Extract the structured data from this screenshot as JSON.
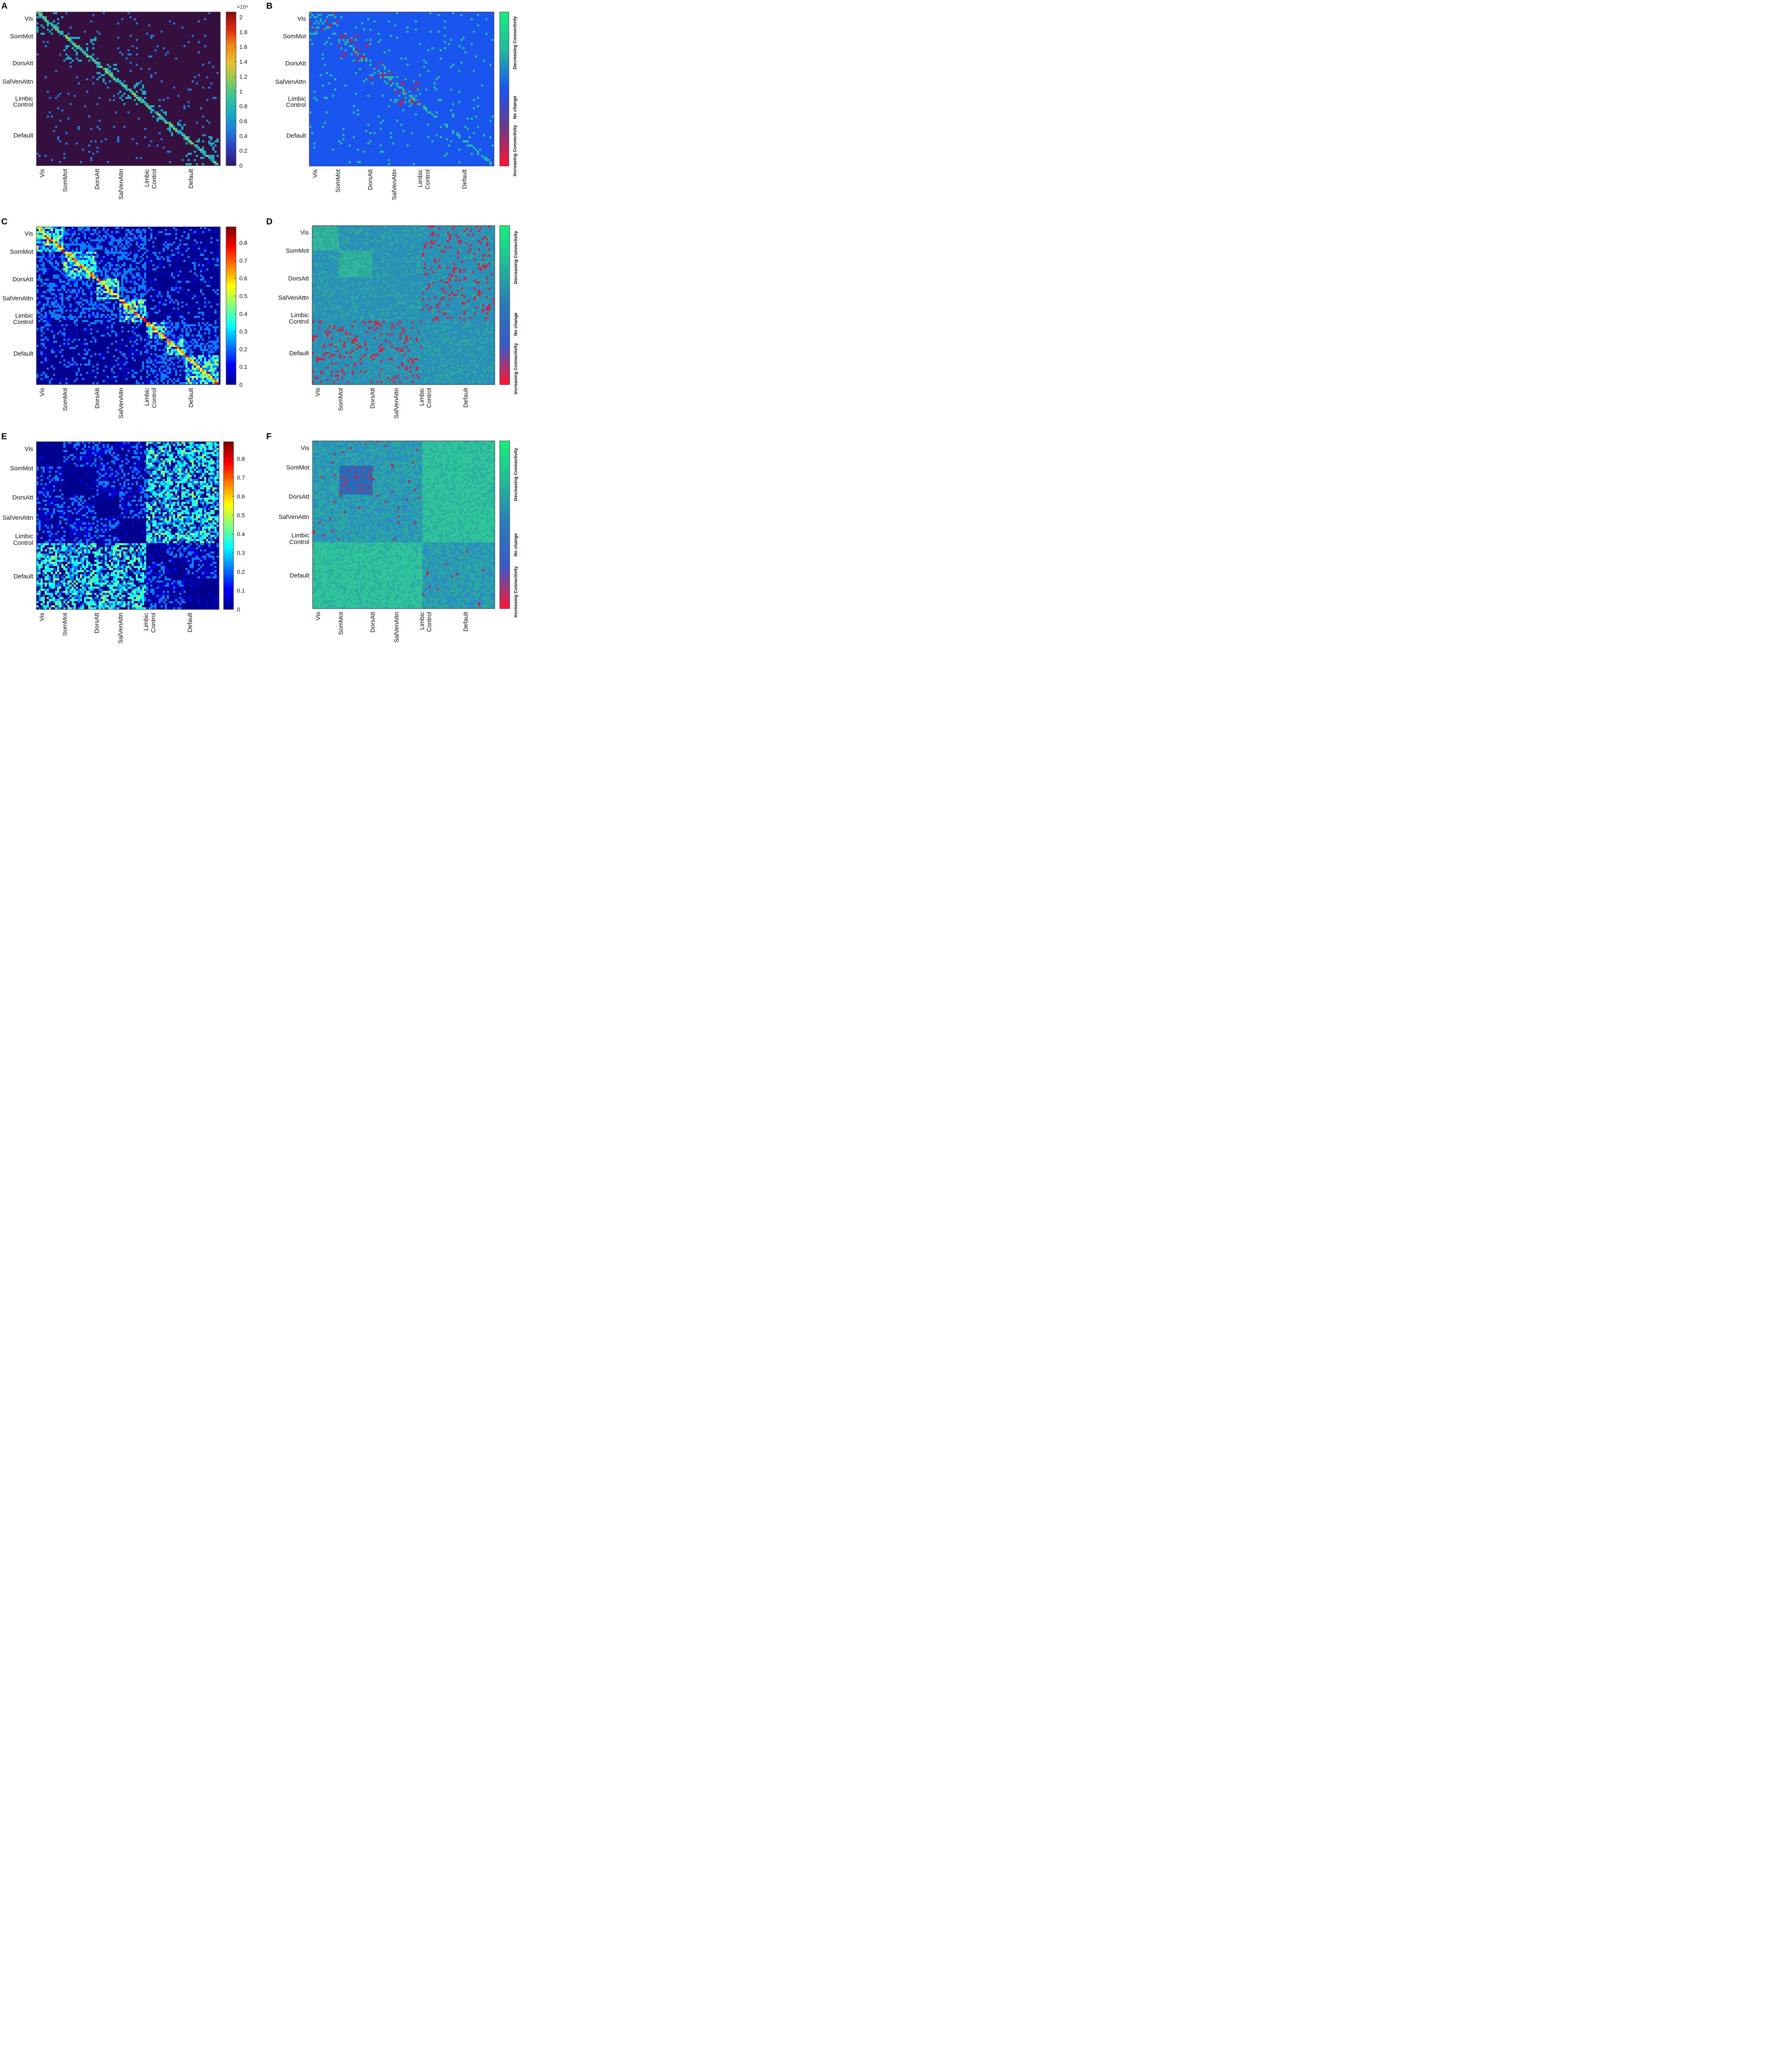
{
  "figure": {
    "networks": [
      "Vis",
      "SomMot",
      "DorsAtt",
      "SalVenAttn",
      "Limbic",
      "Control",
      "Default"
    ]
  },
  "chart_data": [
    {
      "type": "heatmap",
      "panel_letter": "A",
      "colormap": "parula-like",
      "base_color": "#35103f",
      "row_labels": [
        "Vis",
        "SomMot",
        "DorsAtt",
        "SalVenAttn",
        "Limbic",
        "Control",
        "Default"
      ],
      "col_labels": [
        "Vis",
        "SomMot",
        "DorsAtt",
        "SalVenAttn",
        "Limbic",
        "Control",
        "Default"
      ],
      "colorbar": {
        "exponent": "×10⁴",
        "min": 0,
        "max": 2.07,
        "ticks": [
          "0",
          "0.2",
          "0.4",
          "0.6",
          "0.8",
          "1",
          "1.2",
          "1.4",
          "1.6",
          "1.8",
          "2"
        ],
        "tick_values": [
          0,
          0.2,
          0.4,
          0.6,
          0.8,
          1,
          1.2,
          1.4,
          1.6,
          1.8,
          2
        ]
      }
    },
    {
      "type": "heatmap",
      "panel_letter": "B",
      "colormap": "diverging",
      "base_color": "#1a55f0",
      "row_labels": [
        "Vis",
        "SomMot",
        "DorsAtt",
        "SalVenAttn",
        "Limbic",
        "Control",
        "Default"
      ],
      "col_labels": [
        "Vis",
        "SomMot",
        "DorsAtt",
        "SalVenAttn",
        "Limbic",
        "Control",
        "Default"
      ],
      "legend": {
        "top": "Decreasing  Connectivity",
        "middle": "No change",
        "bottom": "Increasing Connectivity",
        "gradient": [
          "#16f07a",
          "#1fb8a0",
          "#1a55f0",
          "#6b3a8a",
          "#ff1530"
        ]
      }
    },
    {
      "type": "heatmap",
      "panel_letter": "C",
      "colormap": "jet",
      "base_color": "#0a1c9c",
      "row_labels": [
        "Vis",
        "SomMot",
        "DorsAtt",
        "SalVenAttn",
        "Limbic",
        "Control",
        "Default"
      ],
      "col_labels": [
        "Vis",
        "SomMot",
        "DorsAtt",
        "SalVenAttn",
        "Limbic",
        "Control",
        "Default"
      ],
      "colorbar": {
        "min": 0,
        "max": 0.89,
        "ticks": [
          "0",
          "0.1",
          "0.2",
          "0.3",
          "0.4",
          "0.5",
          "0.6",
          "0.7",
          "0.8"
        ],
        "tick_values": [
          0,
          0.1,
          0.2,
          0.3,
          0.4,
          0.5,
          0.6,
          0.7,
          0.8
        ]
      }
    },
    {
      "type": "heatmap",
      "panel_letter": "D",
      "colormap": "diverging",
      "base_color": "#2a8fb8",
      "row_labels": [
        "Vis",
        "SomMot",
        "DorsAtt",
        "SalVenAttn",
        "Limbic",
        "Control",
        "Default"
      ],
      "col_labels": [
        "Vis",
        "SomMot",
        "DorsAtt",
        "SalVenAttn",
        "Limbic",
        "Control",
        "Default"
      ],
      "legend": {
        "top": "Decreasing  Connectivity",
        "middle": "No change",
        "bottom": "Increasing Connectivity",
        "gradient": [
          "#16f07a",
          "#22b89a",
          "#2a7ab8",
          "#3a5ac8",
          "#ff1530"
        ]
      }
    },
    {
      "type": "heatmap",
      "panel_letter": "E",
      "colormap": "jet",
      "base_color": "#0a1c9c",
      "row_labels": [
        "Vis",
        "SomMot",
        "DorsAtt",
        "SalVenAttn",
        "Limbic",
        "Control",
        "Default"
      ],
      "col_labels": [
        "Vis",
        "SomMot",
        "DorsAtt",
        "SalVenAttn",
        "Limbic",
        "Control",
        "Default"
      ],
      "colorbar": {
        "min": 0,
        "max": 0.89,
        "ticks": [
          "0",
          "0.1",
          "0.2",
          "0.3",
          "0.4",
          "0.5",
          "0.6",
          "0.7",
          "0.8"
        ],
        "tick_values": [
          0,
          0.1,
          0.2,
          0.3,
          0.4,
          0.5,
          0.6,
          0.7,
          0.8
        ]
      }
    },
    {
      "type": "heatmap",
      "panel_letter": "F",
      "colormap": "diverging",
      "base_color": "#2a8fc0",
      "row_labels": [
        "Vis",
        "SomMot",
        "DorsAtt",
        "SalVenAttn",
        "Limbic",
        "Control",
        "Default"
      ],
      "col_labels": [
        "Vis",
        "SomMot",
        "DorsAtt",
        "SalVenAttn",
        "Limbic",
        "Control",
        "Default"
      ],
      "legend": {
        "top": "Decreasing  Connectivity",
        "middle": "No change",
        "bottom": "Increasing Connectivity",
        "gradient": [
          "#16f07a",
          "#22b89a",
          "#2a7ab8",
          "#3a5ac8",
          "#ff1530"
        ]
      }
    }
  ]
}
